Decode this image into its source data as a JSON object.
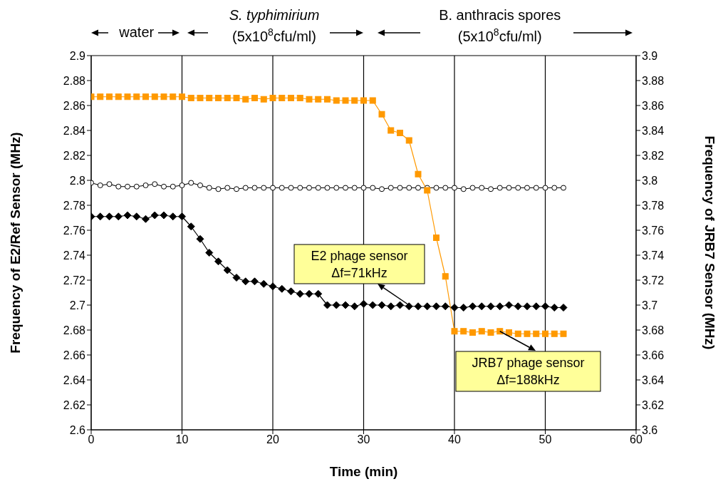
{
  "chart_data": {
    "type": "line",
    "xlabel": "Time (min)",
    "ylabel": "Frequency of E2/Ref Sensor (MHz)",
    "y2label": "Frequency of JRB7 Sensor (MHz)",
    "x": [
      0,
      1,
      2,
      3,
      4,
      5,
      6,
      7,
      8,
      9,
      10,
      11,
      12,
      13,
      14,
      15,
      16,
      17,
      18,
      19,
      20,
      21,
      22,
      23,
      24,
      25,
      26,
      27,
      28,
      29,
      30,
      31,
      32,
      33,
      34,
      35,
      36,
      37,
      38,
      39,
      40,
      41,
      42,
      43,
      44,
      45,
      46,
      47,
      48,
      49,
      50,
      51,
      52
    ],
    "series": [
      {
        "color": "#000000",
        "marker": "diamond",
        "values": [
          2.771,
          2.771,
          2.771,
          2.771,
          2.772,
          2.771,
          2.769,
          2.772,
          2.772,
          2.771,
          2.771,
          2.763,
          2.753,
          2.742,
          2.735,
          2.728,
          2.722,
          2.719,
          2.719,
          2.717,
          2.715,
          2.713,
          2.711,
          2.709,
          2.709,
          2.709,
          2.7,
          2.7,
          2.7,
          2.699,
          2.701,
          2.7,
          2.7,
          2.699,
          2.7,
          2.699,
          2.699,
          2.699,
          2.699,
          2.699,
          2.698,
          2.698,
          2.699,
          2.699,
          2.699,
          2.699,
          2.7,
          2.699,
          2.699,
          2.699,
          2.699,
          2.698,
          2.698
        ]
      },
      {
        "color": "#000000",
        "marker": "circle",
        "values": [
          2.798,
          2.796,
          2.797,
          2.795,
          2.795,
          2.795,
          2.796,
          2.797,
          2.795,
          2.795,
          2.796,
          2.798,
          2.796,
          2.794,
          2.793,
          2.794,
          2.793,
          2.794,
          2.794,
          2.794,
          2.794,
          2.794,
          2.794,
          2.794,
          2.794,
          2.794,
          2.794,
          2.794,
          2.794,
          2.794,
          2.794,
          2.794,
          2.793,
          2.794,
          2.794,
          2.794,
          2.794,
          2.794,
          2.794,
          2.794,
          2.794,
          2.793,
          2.794,
          2.794,
          2.793,
          2.794,
          2.794,
          2.794,
          2.794,
          2.794,
          2.794,
          2.794,
          2.794
        ]
      },
      {
        "color": "#ff9900",
        "marker": "square",
        "axis": "y2",
        "values": [
          3.867,
          3.867,
          3.867,
          3.867,
          3.867,
          3.867,
          3.867,
          3.867,
          3.867,
          3.867,
          3.867,
          3.866,
          3.866,
          3.866,
          3.866,
          3.866,
          3.866,
          3.865,
          3.866,
          3.865,
          3.866,
          3.866,
          3.866,
          3.866,
          3.865,
          3.865,
          3.865,
          3.864,
          3.864,
          3.864,
          3.864,
          3.864,
          3.853,
          3.84,
          3.838,
          3.832,
          3.805,
          3.792,
          3.754,
          3.723,
          3.679,
          3.679,
          3.678,
          3.679,
          3.678,
          3.679,
          3.678,
          3.677,
          3.677,
          3.677,
          3.677,
          3.677,
          3.677
        ]
      }
    ],
    "xlim": [
      0,
      60
    ],
    "xticks": [
      0,
      10,
      20,
      30,
      40,
      50,
      60
    ],
    "ylim": [
      2.6,
      2.9
    ],
    "yticks": [
      2.6,
      2.62,
      2.64,
      2.66,
      2.68,
      2.7,
      2.72,
      2.74,
      2.76,
      2.78,
      2.8,
      2.82,
      2.84,
      2.86,
      2.88,
      2.9
    ],
    "y2lim": [
      3.6,
      3.9
    ],
    "y2ticks": [
      3.6,
      3.62,
      3.64,
      3.66,
      3.68,
      3.7,
      3.72,
      3.74,
      3.76,
      3.78,
      3.8,
      3.82,
      3.84,
      3.86,
      3.88,
      3.9
    ],
    "grid": true,
    "annotations": [
      "water",
      "S. typhimirium",
      "(5x10$^{8}$cfu/ml)",
      "B. anthracis spores",
      "(5x10$^{8}$cfu/ml)",
      {
        "text": "E2 phage sensor\nΔf=71kHz",
        "x": 35,
        "y": 2.7
      },
      {
        "text": "JRB7 phage sensor\nΔf=188kHz",
        "x": 45,
        "y": 2.679
      }
    ]
  }
}
